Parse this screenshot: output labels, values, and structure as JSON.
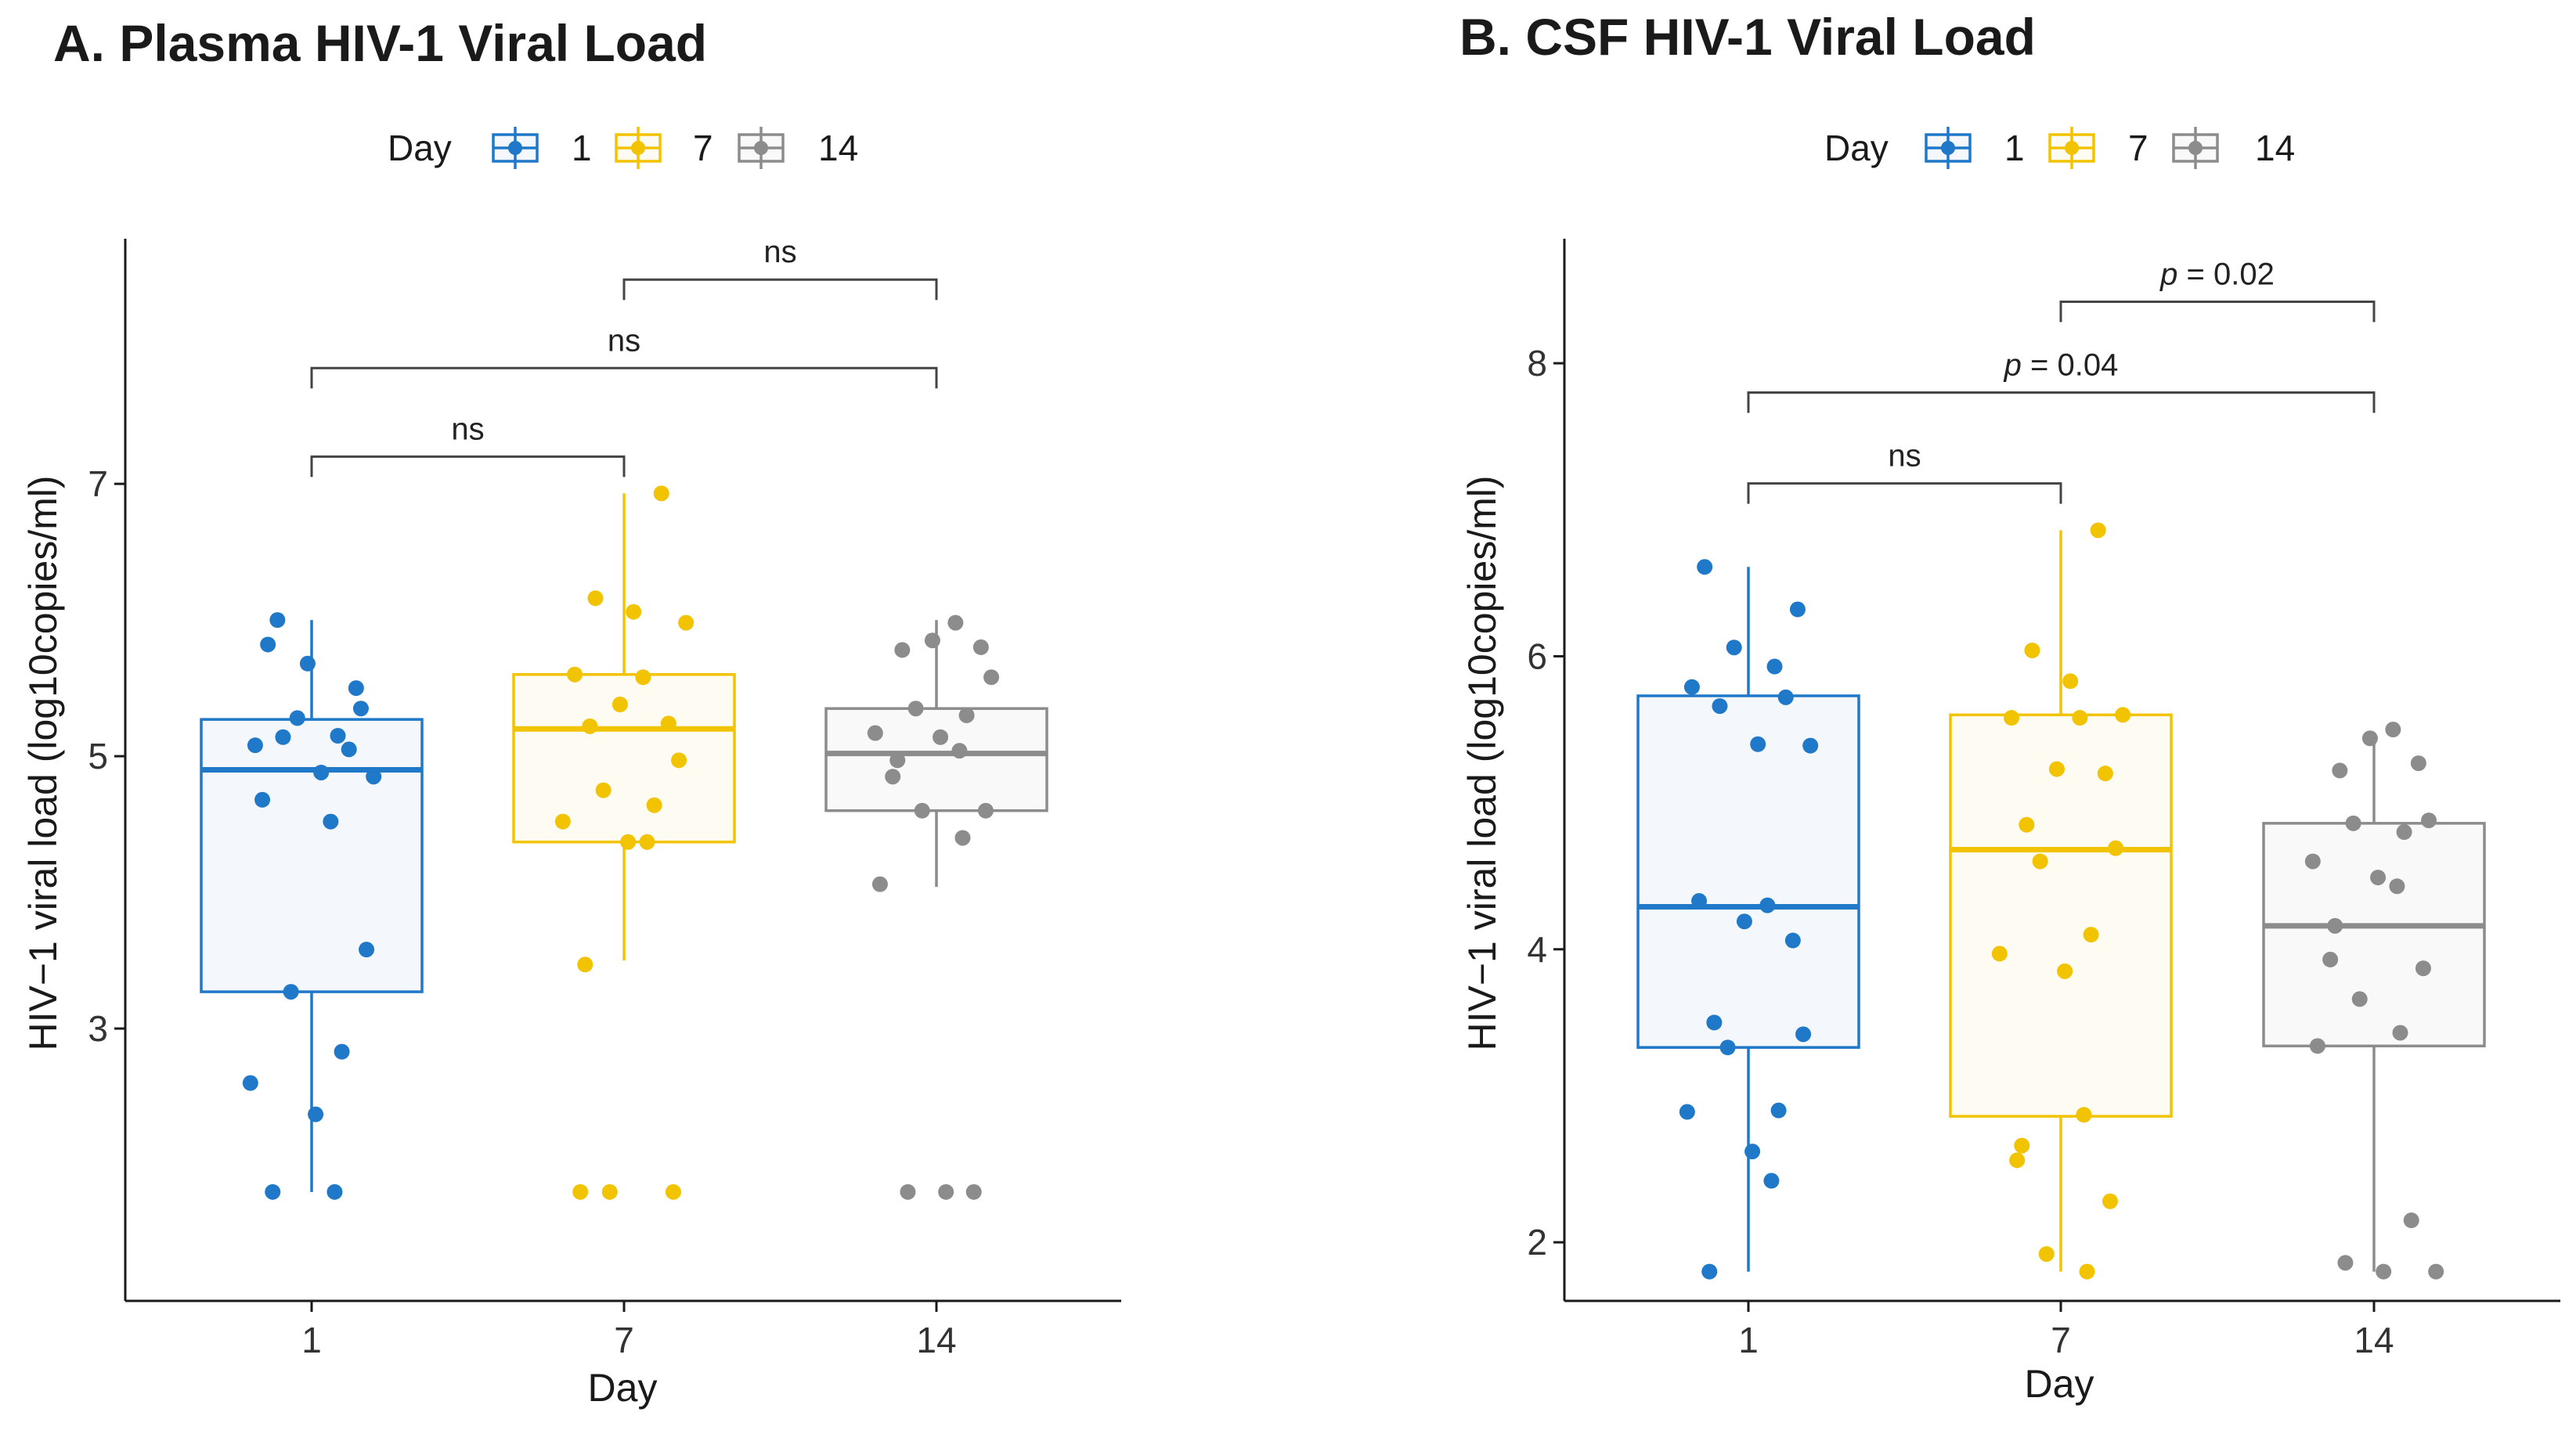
{
  "chart_data": [
    {
      "type": "box",
      "title": "A. Plasma HIV-1 Viral Load",
      "xlabel": "Day",
      "ylabel": "HIV−1 viral load (log10copies/ml)",
      "ylim": [
        1.0,
        8.8
      ],
      "yticks": [
        3,
        5,
        7
      ],
      "categories": [
        "1",
        "7",
        "14"
      ],
      "legend": {
        "title": "Day",
        "entries": [
          "1",
          "7",
          "14"
        ],
        "placement": "top"
      },
      "colors": [
        "#1f78c8",
        "#f2c300",
        "#8c8c8c"
      ],
      "series": [
        {
          "name": "1",
          "q1": 3.27,
          "median": 4.9,
          "q3": 5.27,
          "whisker_low": 1.8,
          "whisker_high": 6.0,
          "points": [
            5.82,
            5.35,
            5.28,
            5.15,
            5.08,
            5.05,
            5.14,
            4.88,
            4.85,
            4.68,
            4.52,
            5.68,
            5.5,
            6.0,
            3.58,
            3.27,
            2.83,
            2.6,
            2.37,
            1.8,
            1.8
          ]
        },
        {
          "name": "7",
          "q1": 4.37,
          "median": 5.2,
          "q3": 5.6,
          "whisker_low": 3.5,
          "whisker_high": 6.93,
          "points": [
            6.93,
            6.16,
            6.06,
            5.98,
            5.6,
            5.58,
            5.38,
            5.24,
            5.22,
            4.97,
            4.75,
            4.64,
            4.52,
            4.37,
            4.37,
            3.47,
            1.8,
            1.8,
            1.8
          ]
        },
        {
          "name": "14",
          "q1": 4.6,
          "median": 5.02,
          "q3": 5.35,
          "whisker_low": 4.04,
          "whisker_high": 6.0,
          "points": [
            5.98,
            5.85,
            5.8,
            5.78,
            5.58,
            5.35,
            5.3,
            5.17,
            5.14,
            5.04,
            4.97,
            4.85,
            4.6,
            4.6,
            4.4,
            4.06,
            1.8,
            1.8,
            1.8
          ]
        }
      ],
      "annotations": [
        {
          "from": "1",
          "to": "7",
          "y": 7.2,
          "label": "ns"
        },
        {
          "from": "1",
          "to": "14",
          "y": 7.85,
          "label": "ns"
        },
        {
          "from": "7",
          "to": "14",
          "y": 8.5,
          "label": "ns"
        }
      ]
    },
    {
      "type": "box",
      "title": "B. CSF HIV-1 Viral Load",
      "xlabel": "Day",
      "ylabel": "HIV−1 viral load (log10copies/ml)",
      "ylim": [
        1.6,
        8.85
      ],
      "yticks": [
        2,
        4,
        6,
        8
      ],
      "categories": [
        "1",
        "7",
        "14"
      ],
      "legend": {
        "title": "Day",
        "entries": [
          "1",
          "7",
          "14"
        ],
        "placement": "top"
      },
      "colors": [
        "#1f78c8",
        "#f2c300",
        "#8c8c8c"
      ],
      "series": [
        {
          "name": "1",
          "q1": 3.33,
          "median": 4.29,
          "q3": 5.73,
          "whisker_low": 1.8,
          "whisker_high": 6.61,
          "points": [
            6.61,
            6.32,
            6.06,
            5.93,
            5.79,
            5.72,
            5.66,
            5.4,
            5.39,
            4.33,
            4.3,
            4.19,
            4.06,
            3.5,
            3.42,
            3.33,
            2.9,
            2.89,
            2.62,
            2.42,
            1.8
          ]
        },
        {
          "name": "7",
          "q1": 2.86,
          "median": 4.68,
          "q3": 5.6,
          "whisker_low": 1.8,
          "whisker_high": 6.86,
          "points": [
            6.86,
            6.04,
            5.83,
            5.6,
            5.58,
            5.58,
            5.23,
            5.2,
            4.85,
            4.69,
            4.6,
            4.1,
            3.97,
            3.85,
            2.87,
            2.66,
            2.56,
            2.28,
            1.92,
            1.8
          ]
        },
        {
          "name": "14",
          "q1": 3.34,
          "median": 4.16,
          "q3": 4.86,
          "whisker_low": 1.8,
          "whisker_high": 5.48,
          "points": [
            5.5,
            5.44,
            5.27,
            5.22,
            4.88,
            4.86,
            4.8,
            4.6,
            4.49,
            4.43,
            4.16,
            3.93,
            3.87,
            3.66,
            3.43,
            3.34,
            2.15,
            1.86,
            1.8,
            1.8
          ]
        }
      ],
      "annotations": [
        {
          "from": "1",
          "to": "7",
          "y": 7.18,
          "label": "ns"
        },
        {
          "from": "1",
          "to": "14",
          "y": 7.8,
          "label": "p = 0.04"
        },
        {
          "from": "7",
          "to": "14",
          "y": 8.42,
          "label": "p = 0.02"
        }
      ]
    }
  ]
}
